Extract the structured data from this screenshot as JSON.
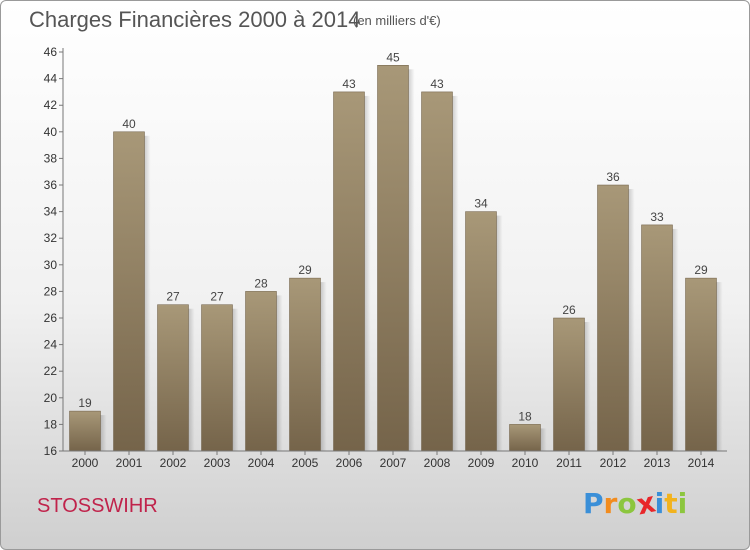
{
  "chart_data": {
    "type": "bar",
    "title": "Charges Financières 2000 à 2014",
    "subtitle": "(en milliers d'€)",
    "categories": [
      "2000",
      "2001",
      "2002",
      "2003",
      "2004",
      "2005",
      "2006",
      "2007",
      "2008",
      "2009",
      "2010",
      "2011",
      "2012",
      "2013",
      "2014"
    ],
    "values": [
      19,
      40,
      27,
      27,
      28,
      29,
      43,
      45,
      43,
      34,
      18,
      26,
      36,
      33,
      29
    ],
    "ylim": [
      16,
      46
    ],
    "yticks": [
      16,
      18,
      20,
      22,
      24,
      26,
      28,
      30,
      32,
      34,
      36,
      38,
      40,
      42,
      44,
      46
    ],
    "grid": false,
    "bar_color_top": "#a89878",
    "bar_color_bottom": "#75644a"
  },
  "footer": {
    "town": "STOSSWIHR",
    "town_color": "#c0234b",
    "logo": {
      "text": "Proxiti",
      "letters": [
        {
          "ch": "P",
          "color": "#3a8fd8"
        },
        {
          "ch": "r",
          "color": "#f28c1e"
        },
        {
          "ch": "o",
          "color": "#8cc63e"
        },
        {
          "ch": "x",
          "color": "#e8262a"
        },
        {
          "ch": "i",
          "color": "#3a8fd8"
        },
        {
          "ch": "t",
          "color": "#f2b31e"
        },
        {
          "ch": "i",
          "color": "#8cc63e"
        }
      ]
    }
  }
}
